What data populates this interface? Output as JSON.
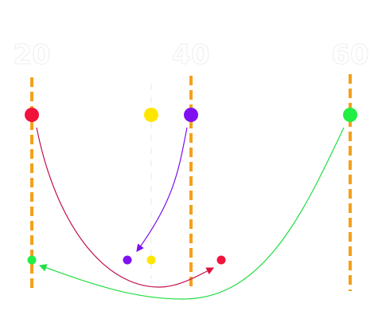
{
  "labels": [
    "20",
    "40",
    "60"
  ]
}
